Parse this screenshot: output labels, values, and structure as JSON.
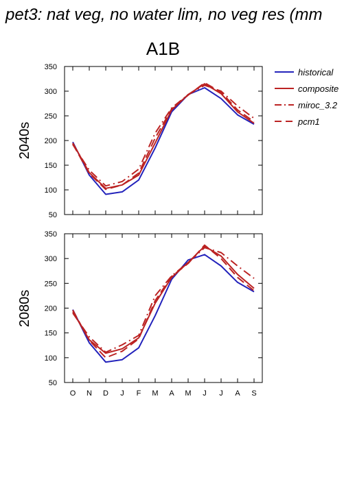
{
  "title": "pet3: nat veg, no water lim, no veg res (mm",
  "scenario": "A1B",
  "colors": {
    "historical": "#2222bb",
    "composite": "#bb2222",
    "miroc_3.2": "#bb2222",
    "pcm1": "#bb2222"
  },
  "chart_data": [
    {
      "type": "line",
      "panel_label": "2040s",
      "categories": [
        "O",
        "N",
        "D",
        "J",
        "F",
        "M",
        "A",
        "M",
        "J",
        "J",
        "A",
        "S"
      ],
      "ylim": [
        50,
        350
      ],
      "yticks": [
        50,
        100,
        150,
        200,
        250,
        300,
        350
      ],
      "legend_position": "right",
      "series": [
        {
          "name": "historical",
          "style": "solid",
          "values": [
            197,
            130,
            91,
            96,
            120,
            185,
            258,
            293,
            307,
            285,
            252,
            233
          ]
        },
        {
          "name": "composite",
          "style": "solid",
          "values": [
            195,
            135,
            103,
            110,
            130,
            195,
            262,
            293,
            315,
            295,
            258,
            235
          ]
        },
        {
          "name": "miroc_3.2",
          "style": "dashdot",
          "values": [
            192,
            140,
            108,
            117,
            142,
            215,
            266,
            293,
            312,
            300,
            270,
            245
          ]
        },
        {
          "name": "pcm1",
          "style": "dashed",
          "values": [
            193,
            133,
            101,
            110,
            134,
            205,
            264,
            292,
            317,
            298,
            262,
            238
          ]
        }
      ]
    },
    {
      "type": "line",
      "panel_label": "2080s",
      "categories": [
        "O",
        "N",
        "D",
        "J",
        "F",
        "M",
        "A",
        "M",
        "J",
        "J",
        "A",
        "S"
      ],
      "ylim": [
        50,
        350
      ],
      "yticks": [
        50,
        100,
        150,
        200,
        250,
        300,
        350
      ],
      "series": [
        {
          "name": "historical",
          "style": "solid",
          "values": [
            197,
            130,
            91,
            96,
            120,
            185,
            258,
            297,
            308,
            285,
            252,
            233
          ]
        },
        {
          "name": "composite",
          "style": "solid",
          "values": [
            193,
            136,
            109,
            118,
            140,
            210,
            262,
            292,
            325,
            305,
            268,
            240
          ]
        },
        {
          "name": "miroc_3.2",
          "style": "dashdot",
          "values": [
            190,
            142,
            111,
            126,
            145,
            225,
            265,
            292,
            322,
            312,
            285,
            260
          ]
        },
        {
          "name": "pcm1",
          "style": "dashed",
          "values": [
            196,
            135,
            100,
            113,
            138,
            215,
            264,
            290,
            327,
            300,
            262,
            235
          ]
        }
      ]
    }
  ]
}
